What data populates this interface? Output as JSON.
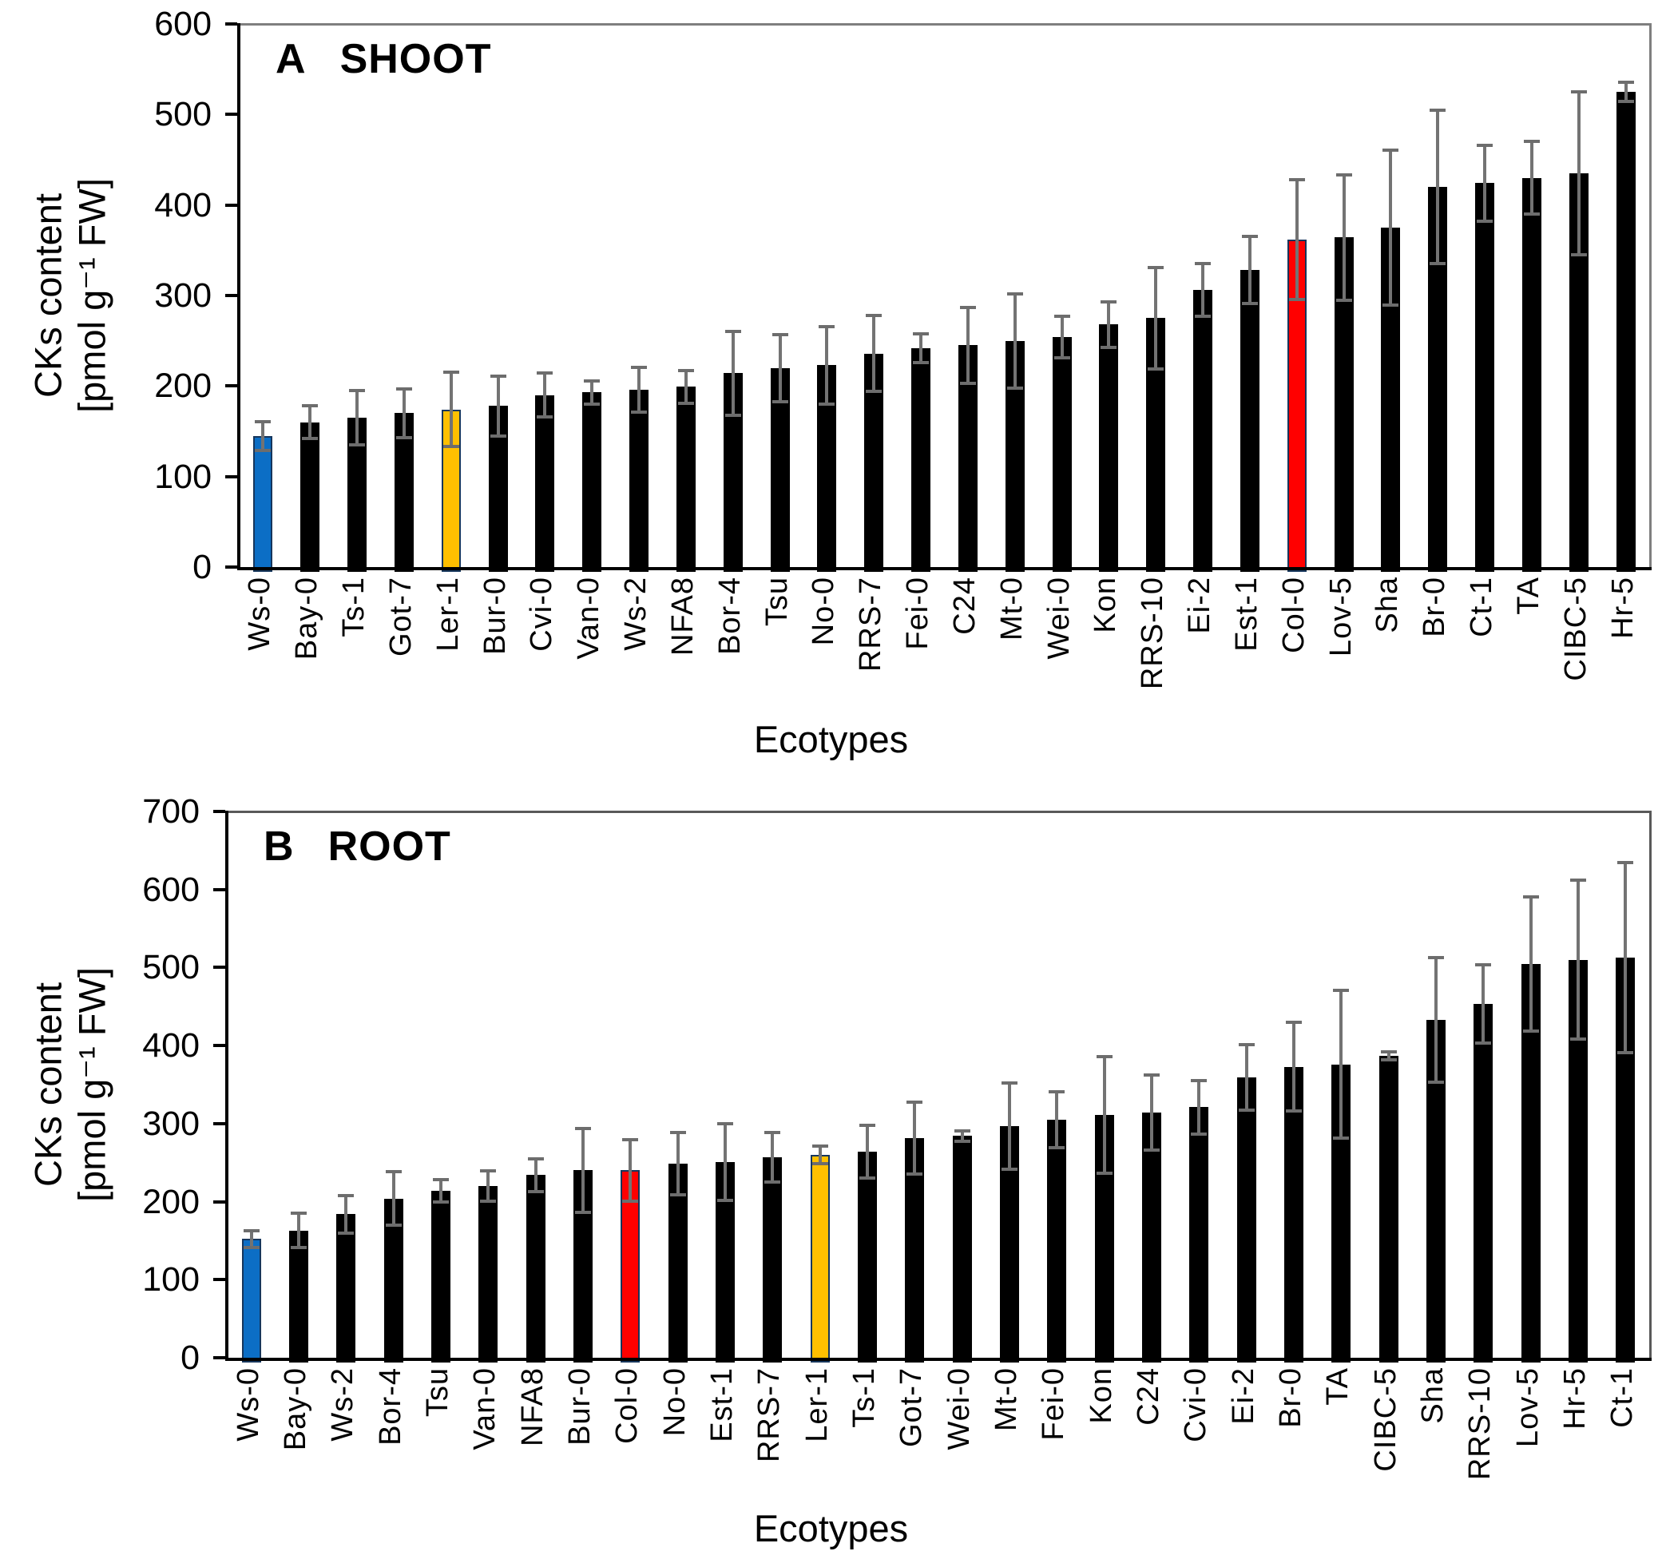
{
  "figure": {
    "description_visible_text_only": true,
    "x_axis_title": "Ecotypes"
  },
  "colors": {
    "bar_default": "#000000",
    "error_bar": "#737373",
    "highlight_blue": "#0C6EC5",
    "highlight_gold": "#FFC000",
    "highlight_red": "#FF0000",
    "axis_line": "#000000",
    "box_border_gray": "#7f7f7f",
    "text": "#000000",
    "background": "#ffffff"
  },
  "chart_data": [
    {
      "type": "bar",
      "panel": "A",
      "panel_title": "SHOOT",
      "y_axis_title_line1": "CKs content",
      "y_axis_title_line2": "[pmol g⁻¹ FW]",
      "x_axis_title": "Ecotypes",
      "ylim": [
        0,
        600
      ],
      "ytick_step": 100,
      "ytick_labels": [
        "0",
        "100",
        "200",
        "300",
        "400",
        "500",
        "600"
      ],
      "grid": "off",
      "legend": "none",
      "error_bars": "plus-minus, gray",
      "categories": [
        "Ws-0",
        "Bay-0",
        "Ts-1",
        "Got-7",
        "Ler-1",
        "Bur-0",
        "Cvi-0",
        "Van-0",
        "Ws-2",
        "NFA8",
        "Bor-4",
        "Tsu",
        "No-0",
        "RRS-7",
        "Fei-0",
        "C24",
        "Mt-0",
        "Wei-0",
        "Kon",
        "RRS-10",
        "Ei-2",
        "Est-1",
        "Col-0",
        "Lov-5",
        "Sha",
        "Br-0",
        "Ct-1",
        "TA",
        "CIBC-5",
        "Hr-5"
      ],
      "values": [
        145,
        160,
        165,
        170,
        174,
        178,
        190,
        193,
        196,
        199,
        214,
        220,
        223,
        236,
        242,
        245,
        250,
        254,
        268,
        275,
        306,
        328,
        362,
        364,
        375,
        420,
        424,
        430,
        435,
        525
      ],
      "errors": [
        16,
        18,
        30,
        27,
        41,
        33,
        24,
        13,
        25,
        18,
        46,
        37,
        43,
        42,
        16,
        42,
        52,
        23,
        25,
        56,
        29,
        37,
        66,
        69,
        86,
        85,
        42,
        40,
        90,
        11
      ],
      "highlighted_bars": [
        {
          "index": 0,
          "category": "Ws-0",
          "color": "#0C6EC5"
        },
        {
          "index": 4,
          "category": "Ler-1",
          "color": "#FFC000"
        },
        {
          "index": 22,
          "category": "Col-0",
          "color": "#FF0000"
        }
      ]
    },
    {
      "type": "bar",
      "panel": "B",
      "panel_title": "ROOT",
      "y_axis_title_line1": "CKs content",
      "y_axis_title_line2": "[pmol g⁻¹ FW]",
      "x_axis_title": "Ecotypes",
      "ylim": [
        0,
        700
      ],
      "ytick_step": 100,
      "ytick_labels": [
        "0",
        "100",
        "200",
        "300",
        "400",
        "500",
        "600",
        "700"
      ],
      "grid": "off",
      "legend": "none",
      "error_bars": "plus-minus, gray",
      "categories": [
        "Ws-0",
        "Bay-0",
        "Ws-2",
        "Bor-4",
        "Tsu",
        "Van-0",
        "NFA8",
        "Bur-0",
        "Col-0",
        "No-0",
        "Est-1",
        "RRS-7",
        "Ler-1",
        "Ts-1",
        "Got-7",
        "Wei-0",
        "Mt-0",
        "Fei-0",
        "Kon",
        "C24",
        "Cvi-0",
        "Ei-2",
        "Br-0",
        "TA",
        "CIBC-5",
        "Sha",
        "RRS-10",
        "Lov-5",
        "Hr-5",
        "Ct-1"
      ],
      "values": [
        152,
        163,
        184,
        204,
        214,
        220,
        234,
        240,
        240,
        249,
        251,
        257,
        260,
        264,
        281,
        284,
        297,
        305,
        311,
        314,
        321,
        359,
        373,
        376,
        387,
        433,
        453,
        505,
        510,
        513
      ],
      "errors": [
        11,
        22,
        24,
        34,
        14,
        19,
        21,
        54,
        39,
        40,
        49,
        32,
        11,
        34,
        46,
        7,
        55,
        36,
        75,
        48,
        34,
        42,
        57,
        95,
        5,
        80,
        50,
        86,
        102,
        122
      ],
      "highlighted_bars": [
        {
          "index": 0,
          "category": "Ws-0",
          "color": "#0C6EC5"
        },
        {
          "index": 8,
          "category": "Col-0",
          "color": "#FF0000"
        },
        {
          "index": 12,
          "category": "Ler-1",
          "color": "#FFC000"
        }
      ]
    }
  ]
}
